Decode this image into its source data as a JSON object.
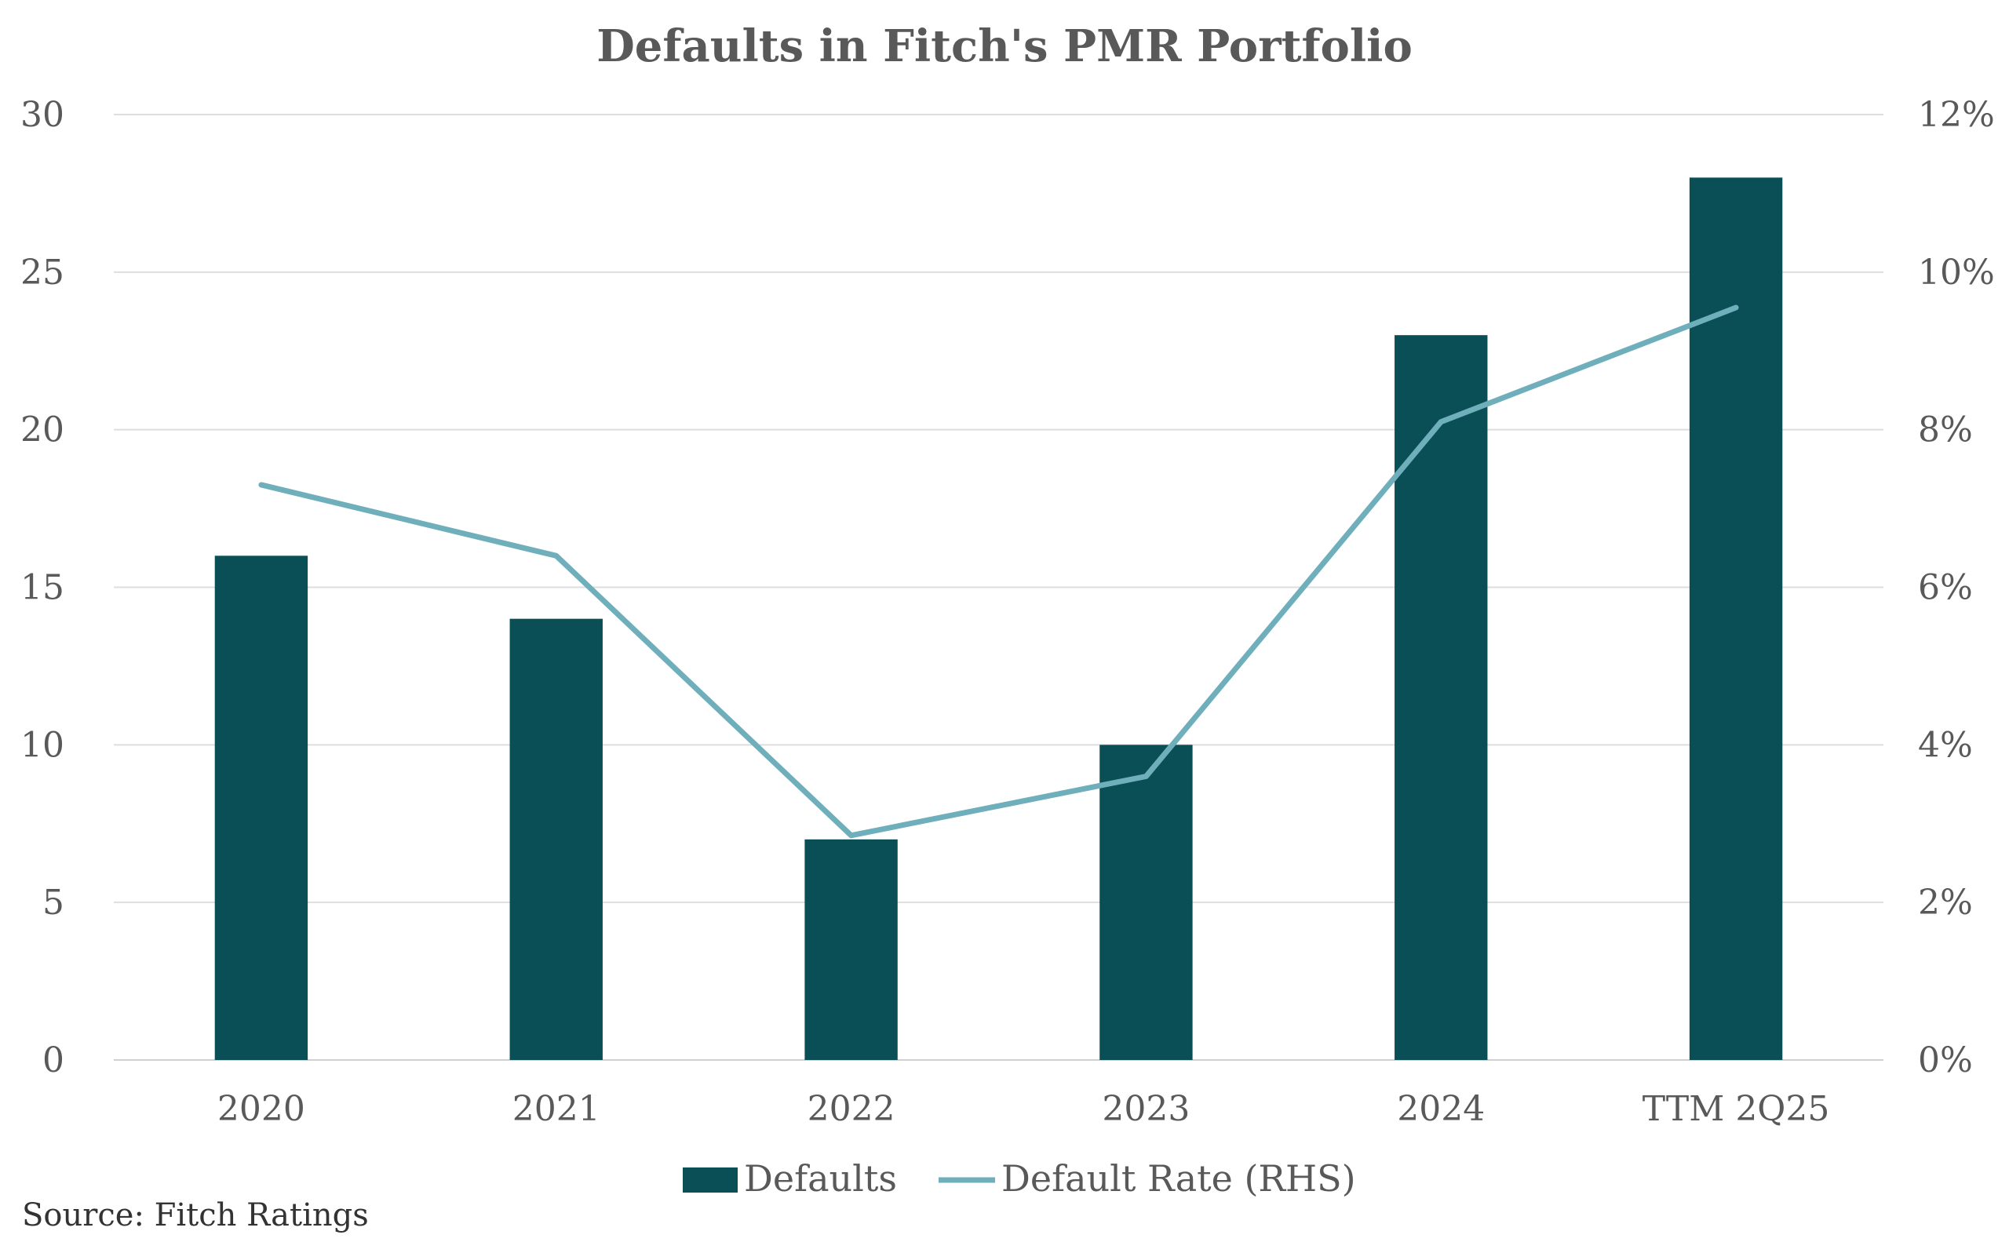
{
  "chart_data": {
    "type": "bar",
    "title": "Defaults in Fitch's PMR Portfolio",
    "categories": [
      "2020",
      "2021",
      "2022",
      "2023",
      "2024",
      "TTM 2Q25"
    ],
    "series": [
      {
        "name": "Defaults",
        "kind": "bar",
        "axis": "left",
        "color": "#094F55",
        "values": [
          16,
          14,
          7,
          10,
          23,
          28
        ]
      },
      {
        "name": "Default Rate (RHS)",
        "kind": "line",
        "axis": "right",
        "color": "#6FAFBC",
        "values": [
          7.3,
          6.4,
          2.85,
          3.6,
          8.1,
          9.55
        ]
      }
    ],
    "y_left": {
      "min": 0,
      "max": 30,
      "ticks": [
        "0",
        "5",
        "10",
        "15",
        "20",
        "25",
        "30"
      ]
    },
    "y_right": {
      "min": 0,
      "max": 12,
      "ticks": [
        "0%",
        "2%",
        "4%",
        "6%",
        "8%",
        "10%",
        "12%"
      ]
    },
    "grid": true,
    "legend_position": "bottom-center",
    "source": "Source: Fitch Ratings"
  }
}
